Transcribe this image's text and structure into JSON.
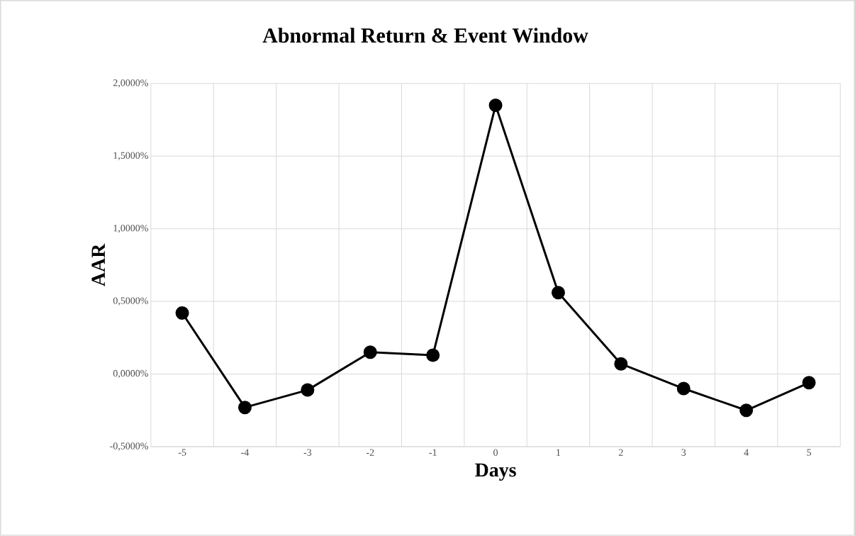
{
  "chart_data": {
    "type": "line",
    "title": "Abnormal Return & Event Window",
    "xlabel": "Days",
    "ylabel": "AAR",
    "categories": [
      "-5",
      "-4",
      "-3",
      "-2",
      "-1",
      "0",
      "1",
      "2",
      "3",
      "4",
      "5"
    ],
    "series": [
      {
        "color": "#000000",
        "values": [
          0.42,
          -0.23,
          -0.11,
          0.15,
          0.13,
          1.85,
          0.56,
          0.07,
          -0.1,
          -0.25,
          -0.06
        ]
      }
    ],
    "ylim": [
      -0.5,
      2.0
    ],
    "yticks": [
      {
        "value": -0.5,
        "label": "-0,5000%"
      },
      {
        "value": 0,
        "label": "0,0000%"
      },
      {
        "value": 0.5,
        "label": "0,5000%"
      },
      {
        "value": 1.0,
        "label": "1,0000%"
      },
      {
        "value": 1.5,
        "label": "1,5000%"
      },
      {
        "value": 2.0,
        "label": "2,0000%"
      }
    ],
    "grid": true,
    "marker": "circle",
    "line_style": "solid"
  }
}
